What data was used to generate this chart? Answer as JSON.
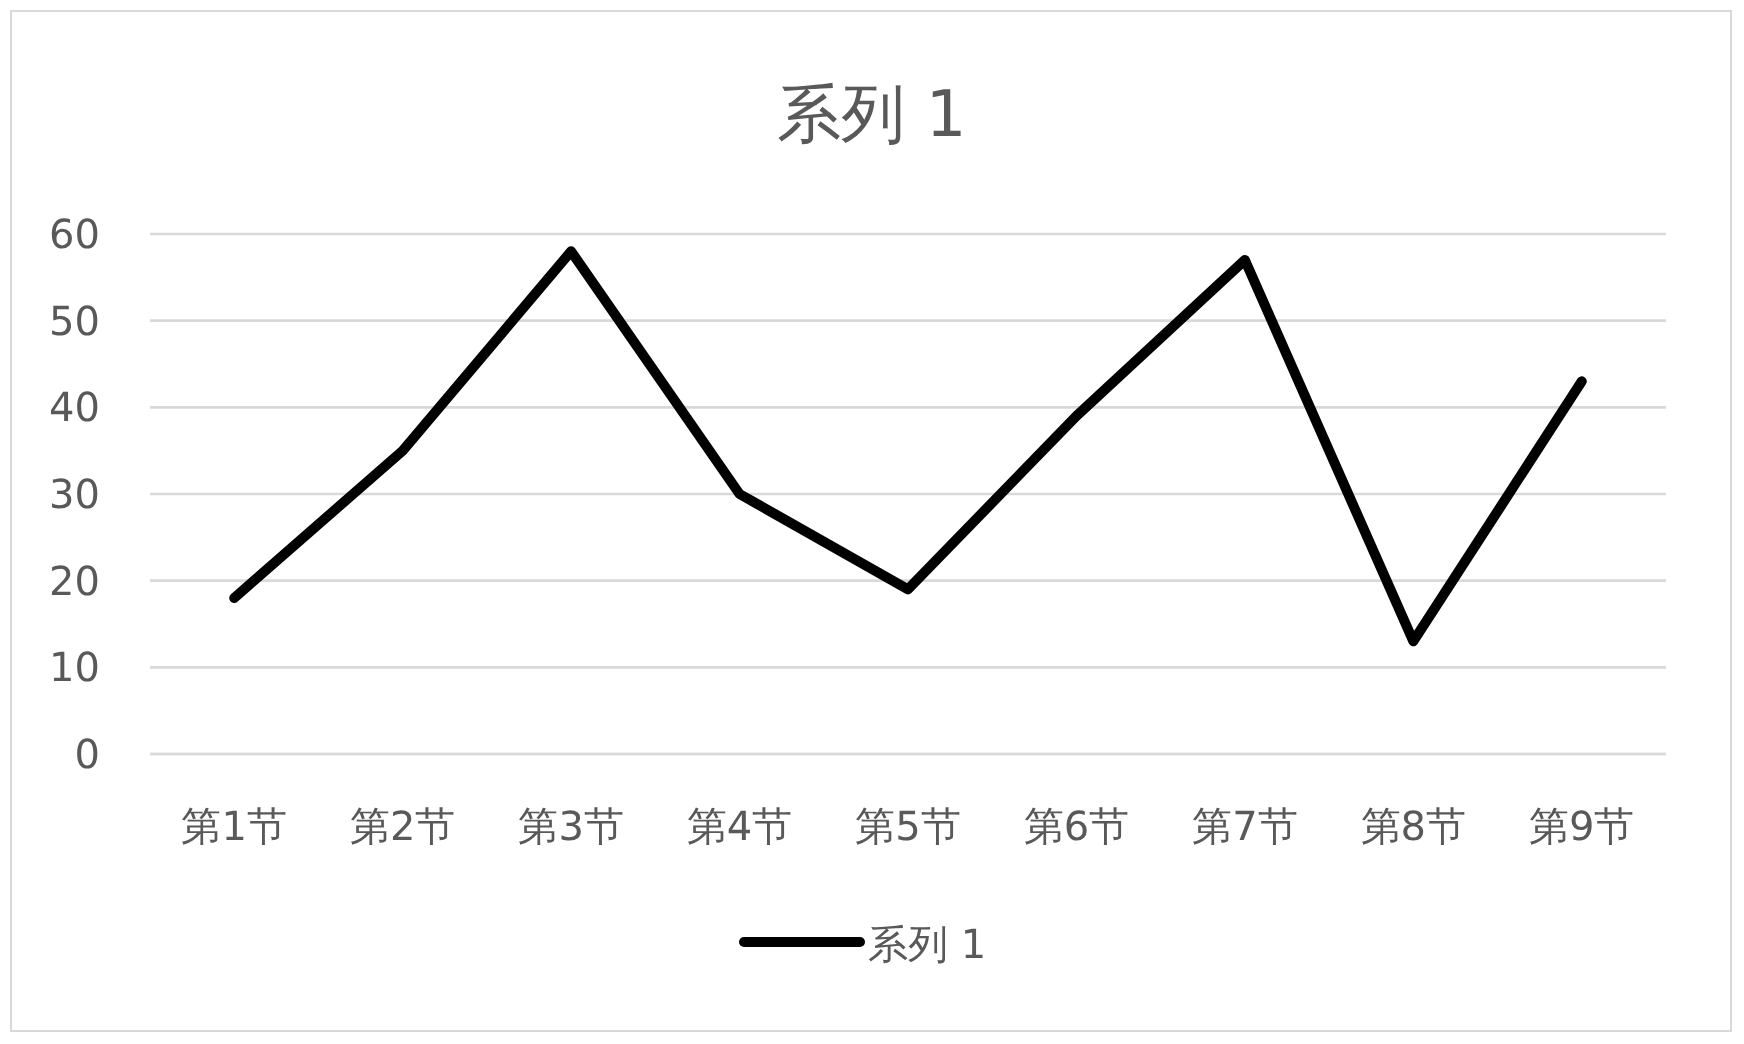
{
  "chart_data": {
    "type": "line",
    "title": "系列 1",
    "categories": [
      "第1节",
      "第2节",
      "第3节",
      "第4节",
      "第5节",
      "第6节",
      "第7节",
      "第8节",
      "第9节"
    ],
    "series": [
      {
        "name": "系列 1",
        "color": "#000000",
        "values": [
          18,
          35,
          58,
          30,
          19,
          39,
          57,
          13,
          43
        ]
      }
    ],
    "ylim": [
      0,
      60
    ],
    "yticks": [
      0,
      10,
      20,
      30,
      40,
      50,
      60
    ],
    "grid": "y",
    "legend": "bottom",
    "marker": "none",
    "line_style": "solid"
  }
}
